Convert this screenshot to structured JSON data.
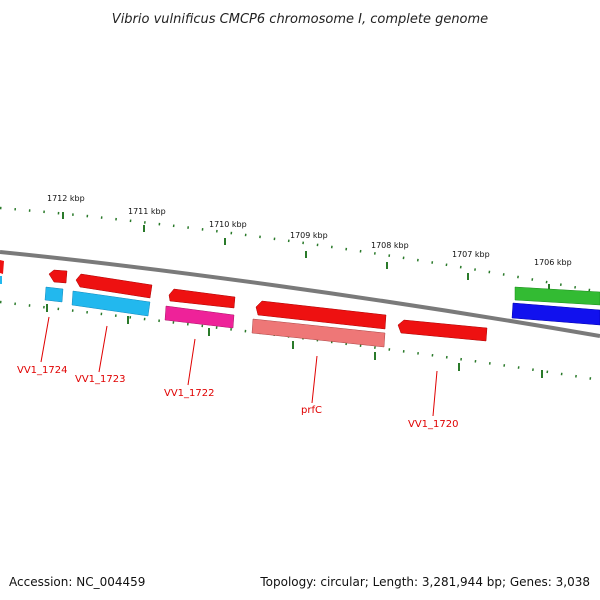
{
  "title": "Vibrio vulnificus CMCP6 chromosome I, complete genome",
  "accession": "Accession: NC_004459",
  "summary": "Topology: circular; Length: 3,281,944 bp; Genes: 3,038",
  "ticks": [
    "1712 kbp",
    "1711 kbp",
    "1710 kbp",
    "1709 kbp",
    "1708 kbp",
    "1707 kbp",
    "1706 kbp"
  ],
  "gene_labels": [
    "VV1_1724",
    "VV1_1723",
    "VV1_1722",
    "prfC",
    "VV1_1720"
  ],
  "colors": {
    "backbone": "#808080",
    "tick": "#2a7a2a",
    "label": "#e00000",
    "red": "#ee1111",
    "cyan": "#22b8ee",
    "magenta": "#ee2299",
    "pink": "#ee7777",
    "green": "#33bb33",
    "blue": "#1111ee"
  }
}
